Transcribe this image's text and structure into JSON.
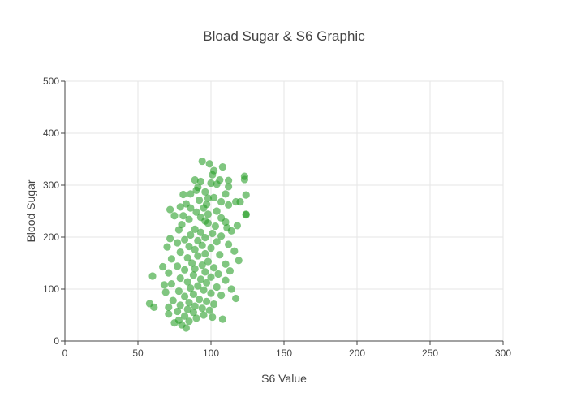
{
  "chart_data": {
    "type": "scatter",
    "title": "Bload Sugar & S6 Graphic",
    "xlabel": "S6 Value",
    "ylabel": "Blood Sugar",
    "xlim": [
      0,
      300
    ],
    "ylim": [
      0,
      500
    ],
    "x_ticks": [
      0,
      50,
      100,
      150,
      200,
      250,
      300
    ],
    "y_ticks": [
      0,
      100,
      200,
      300,
      400,
      500
    ],
    "grid": true,
    "legend": "none",
    "marker_color": "#2ca02c",
    "series": [
      {
        "points": [
          [
            94,
            346
          ],
          [
            99,
            341
          ],
          [
            108,
            335
          ],
          [
            102,
            328
          ],
          [
            101,
            320
          ],
          [
            123,
            317
          ],
          [
            123,
            311
          ],
          [
            89,
            310
          ],
          [
            93,
            307
          ],
          [
            106,
            310
          ],
          [
            112,
            309
          ],
          [
            100,
            304
          ],
          [
            104,
            302
          ],
          [
            91,
            296
          ],
          [
            112,
            297
          ],
          [
            90,
            290
          ],
          [
            96,
            287
          ],
          [
            86,
            283
          ],
          [
            81,
            282
          ],
          [
            110,
            283
          ],
          [
            102,
            276
          ],
          [
            124,
            281
          ],
          [
            98,
            275
          ],
          [
            92,
            271
          ],
          [
            107,
            268
          ],
          [
            117,
            268
          ],
          [
            120,
            268
          ],
          [
            83,
            264
          ],
          [
            97,
            263
          ],
          [
            112,
            262
          ],
          [
            79,
            258
          ],
          [
            95,
            256
          ],
          [
            86,
            256
          ],
          [
            72,
            253
          ],
          [
            104,
            250
          ],
          [
            90,
            248
          ],
          [
            98,
            244
          ],
          [
            124,
            244
          ],
          [
            124,
            243
          ],
          [
            81,
            241
          ],
          [
            75,
            241
          ],
          [
            93,
            238
          ],
          [
            107,
            237
          ],
          [
            85,
            234
          ],
          [
            96,
            231
          ],
          [
            110,
            229
          ],
          [
            98,
            227
          ],
          [
            80,
            224
          ],
          [
            118,
            222
          ],
          [
            103,
            221
          ],
          [
            111,
            218
          ],
          [
            89,
            215
          ],
          [
            78,
            214
          ],
          [
            114,
            212
          ],
          [
            93,
            209
          ],
          [
            101,
            207
          ],
          [
            86,
            204
          ],
          [
            107,
            202
          ],
          [
            96,
            199
          ],
          [
            72,
            197
          ],
          [
            82,
            195
          ],
          [
            91,
            193
          ],
          [
            104,
            191
          ],
          [
            77,
            189
          ],
          [
            112,
            186
          ],
          [
            94,
            184
          ],
          [
            85,
            182
          ],
          [
            70,
            181
          ],
          [
            100,
            179
          ],
          [
            89,
            176
          ],
          [
            116,
            173
          ],
          [
            79,
            171
          ],
          [
            96,
            168
          ],
          [
            106,
            166
          ],
          [
            91,
            164
          ],
          [
            84,
            160
          ],
          [
            73,
            158
          ],
          [
            119,
            155
          ],
          [
            98,
            153
          ],
          [
            87,
            150
          ],
          [
            110,
            148
          ],
          [
            94,
            146
          ],
          [
            77,
            144
          ],
          [
            67,
            143
          ],
          [
            102,
            141
          ],
          [
            89,
            139
          ],
          [
            82,
            137
          ],
          [
            113,
            135
          ],
          [
            96,
            133
          ],
          [
            71,
            131
          ],
          [
            105,
            129
          ],
          [
            88,
            127
          ],
          [
            60,
            125
          ],
          [
            100,
            123
          ],
          [
            79,
            121
          ],
          [
            93,
            119
          ],
          [
            110,
            117
          ],
          [
            84,
            114
          ],
          [
            97,
            112
          ],
          [
            73,
            110
          ],
          [
            68,
            108
          ],
          [
            91,
            106
          ],
          [
            104,
            104
          ],
          [
            86,
            102
          ],
          [
            114,
            100
          ],
          [
            95,
            98
          ],
          [
            78,
            96
          ],
          [
            69,
            94
          ],
          [
            100,
            92
          ],
          [
            88,
            90
          ],
          [
            107,
            88
          ],
          [
            82,
            86
          ],
          [
            117,
            82
          ],
          [
            92,
            80
          ],
          [
            74,
            78
          ],
          [
            97,
            76
          ],
          [
            85,
            74
          ],
          [
            58,
            72
          ],
          [
            102,
            71
          ],
          [
            79,
            69
          ],
          [
            89,
            67
          ],
          [
            71,
            65
          ],
          [
            61,
            65
          ],
          [
            94,
            63
          ],
          [
            84,
            61
          ],
          [
            99,
            59
          ],
          [
            77,
            57
          ],
          [
            88,
            55
          ],
          [
            71,
            52
          ],
          [
            95,
            50
          ],
          [
            82,
            48
          ],
          [
            101,
            46
          ],
          [
            90,
            44
          ],
          [
            108,
            42
          ],
          [
            78,
            40
          ],
          [
            85,
            38
          ],
          [
            75,
            35
          ],
          [
            80,
            31
          ],
          [
            83,
            25
          ]
        ]
      }
    ]
  }
}
